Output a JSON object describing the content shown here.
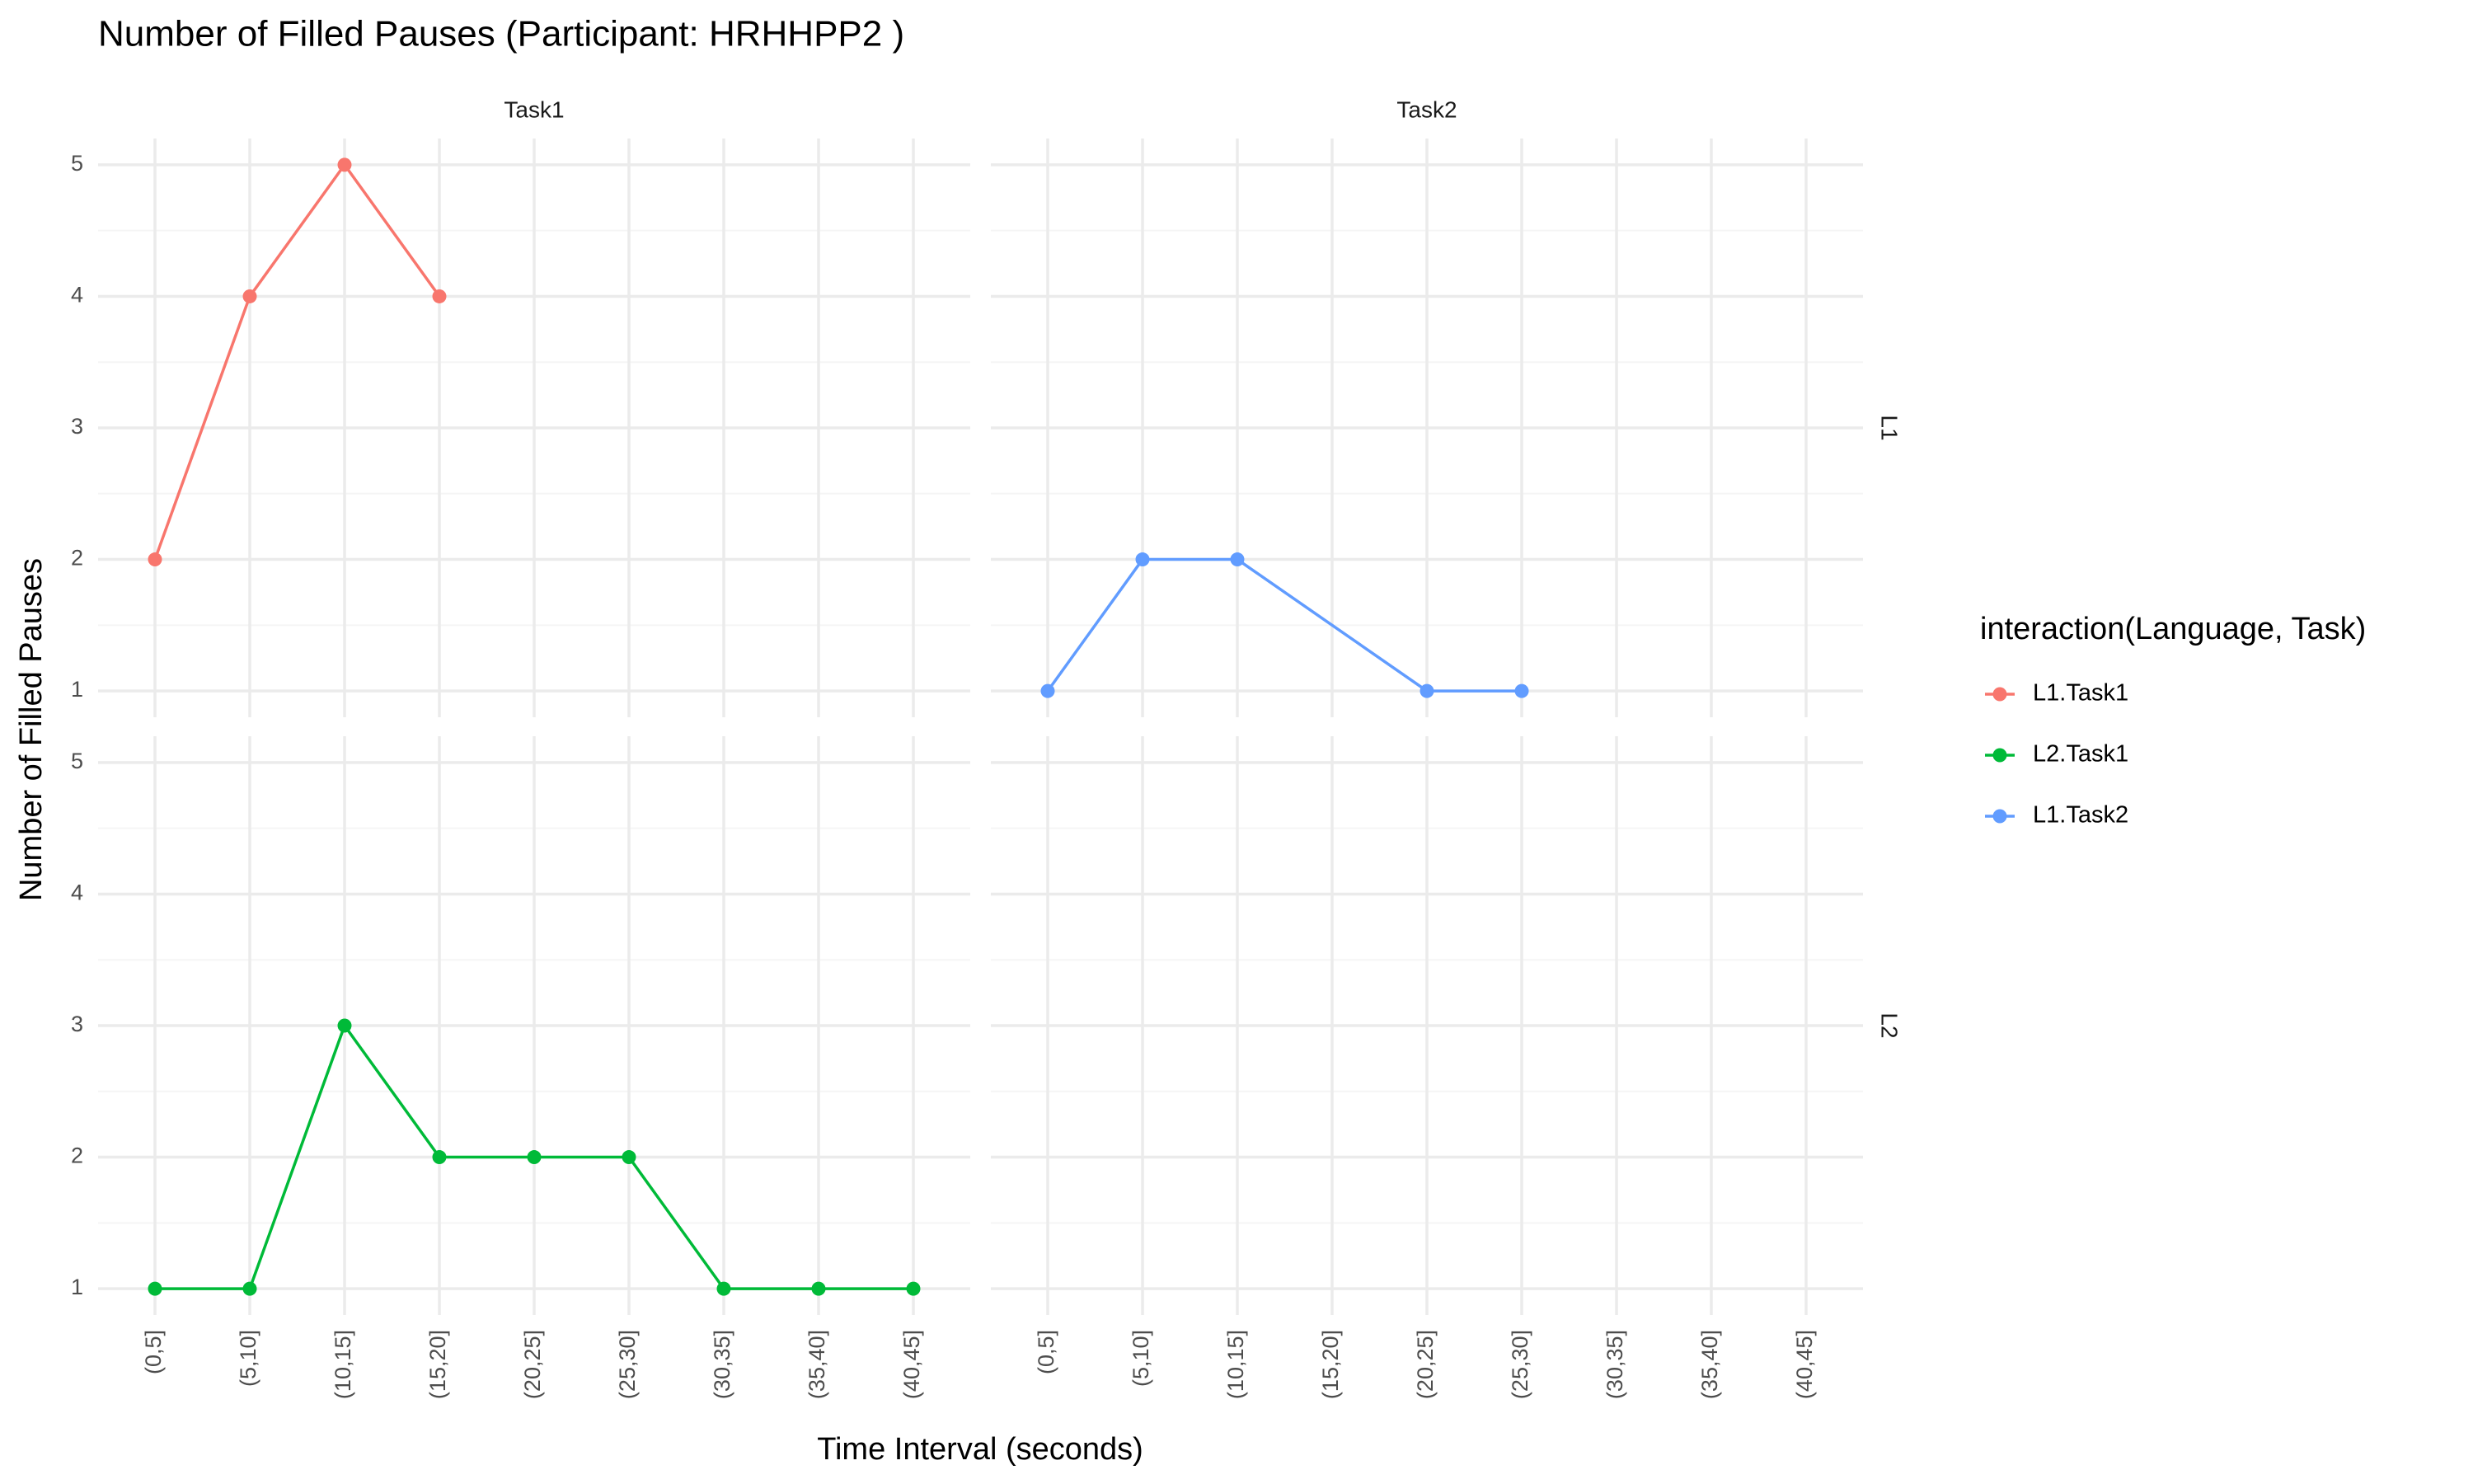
{
  "chart_data": {
    "type": "line",
    "title": "Number of Filled Pauses (Participant: HRHHPP2 )",
    "x_label": "Time Interval (seconds)",
    "y_label": "Number of Filled Pauses",
    "legend_title": "interaction(Language, Task)",
    "categories": [
      "(0,5]",
      "(5,10]",
      "(10,15]",
      "(15,20]",
      "(20,25]",
      "(25,30]",
      "(30,35]",
      "(35,40]",
      "(40,45]"
    ],
    "facet_cols": [
      "Task1",
      "Task2"
    ],
    "facet_rows": [
      "L1",
      "L2"
    ],
    "ylim": [
      0.8,
      5.2
    ],
    "yticks": [
      1,
      2,
      3,
      4,
      5
    ],
    "y_minor_ticks": [
      1.5,
      2.5,
      3.5,
      4.5
    ],
    "grid": true,
    "panels": [
      [
        {
          "series": [
            {
              "name": "L1.Task1",
              "color": "#f8766d",
              "x": [
                "(0,5]",
                "(5,10]",
                "(10,15]",
                "(15,20]"
              ],
              "values": [
                2,
                4,
                5,
                4
              ]
            }
          ]
        },
        {
          "series": [
            {
              "name": "L2.Task1",
              "color": "#00ba38",
              "x": [
                "(0,5]",
                "(5,10]",
                "(10,15]",
                "(15,20]",
                "(20,25]",
                "(25,30]",
                "(30,35]",
                "(35,40]",
                "(40,45]"
              ],
              "values": [
                1,
                1,
                3,
                2,
                2,
                2,
                1,
                1,
                1
              ]
            }
          ]
        }
      ],
      [
        {
          "series": [
            {
              "name": "L1.Task2",
              "color": "#619cff",
              "x": [
                "(0,5]",
                "(5,10]",
                "(10,15]",
                "(20,25]",
                "(25,30]"
              ],
              "values": [
                1,
                2,
                2,
                1,
                1
              ]
            }
          ]
        },
        {
          "series": []
        }
      ]
    ]
  }
}
